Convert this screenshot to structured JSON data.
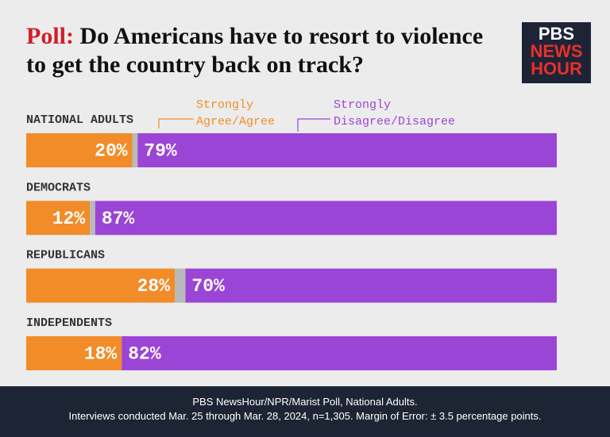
{
  "header": {
    "title_label": "Poll:",
    "title": "Do Americans have to resort to violence to get the country back on track?"
  },
  "logo": {
    "lines": [
      "PBS",
      "NEWS",
      "HOUR"
    ]
  },
  "chart_data": {
    "type": "stacked-bar-horizontal",
    "categories": [
      "NATIONAL ADULTS",
      "DEMOCRATS",
      "REPUBLICANS",
      "INDEPENDENTS"
    ],
    "xlim": [
      0,
      100
    ],
    "series": [
      {
        "name": "Strongly Agree/Agree",
        "color": "#f28c28",
        "values": [
          20,
          12,
          28,
          18
        ],
        "value_labels": [
          "20%",
          "12%",
          "28%",
          "18%"
        ]
      },
      {
        "color": "#b9b9b9",
        "values": [
          1,
          1,
          2,
          0
        ]
      },
      {
        "name": "Strongly Disagree/Disagree",
        "color": "#9b45d6",
        "values": [
          79,
          87,
          70,
          82
        ],
        "value_labels": [
          "79%",
          "87%",
          "70%",
          "82%"
        ]
      }
    ]
  },
  "footer": {
    "source": "PBS NewsHour/NPR/Marist Poll, National Adults.",
    "note": "Interviews conducted Mar. 25 through Mar. 28, 2024, n=1,305. Margin of Error:  ± 3.5 percentage points."
  }
}
